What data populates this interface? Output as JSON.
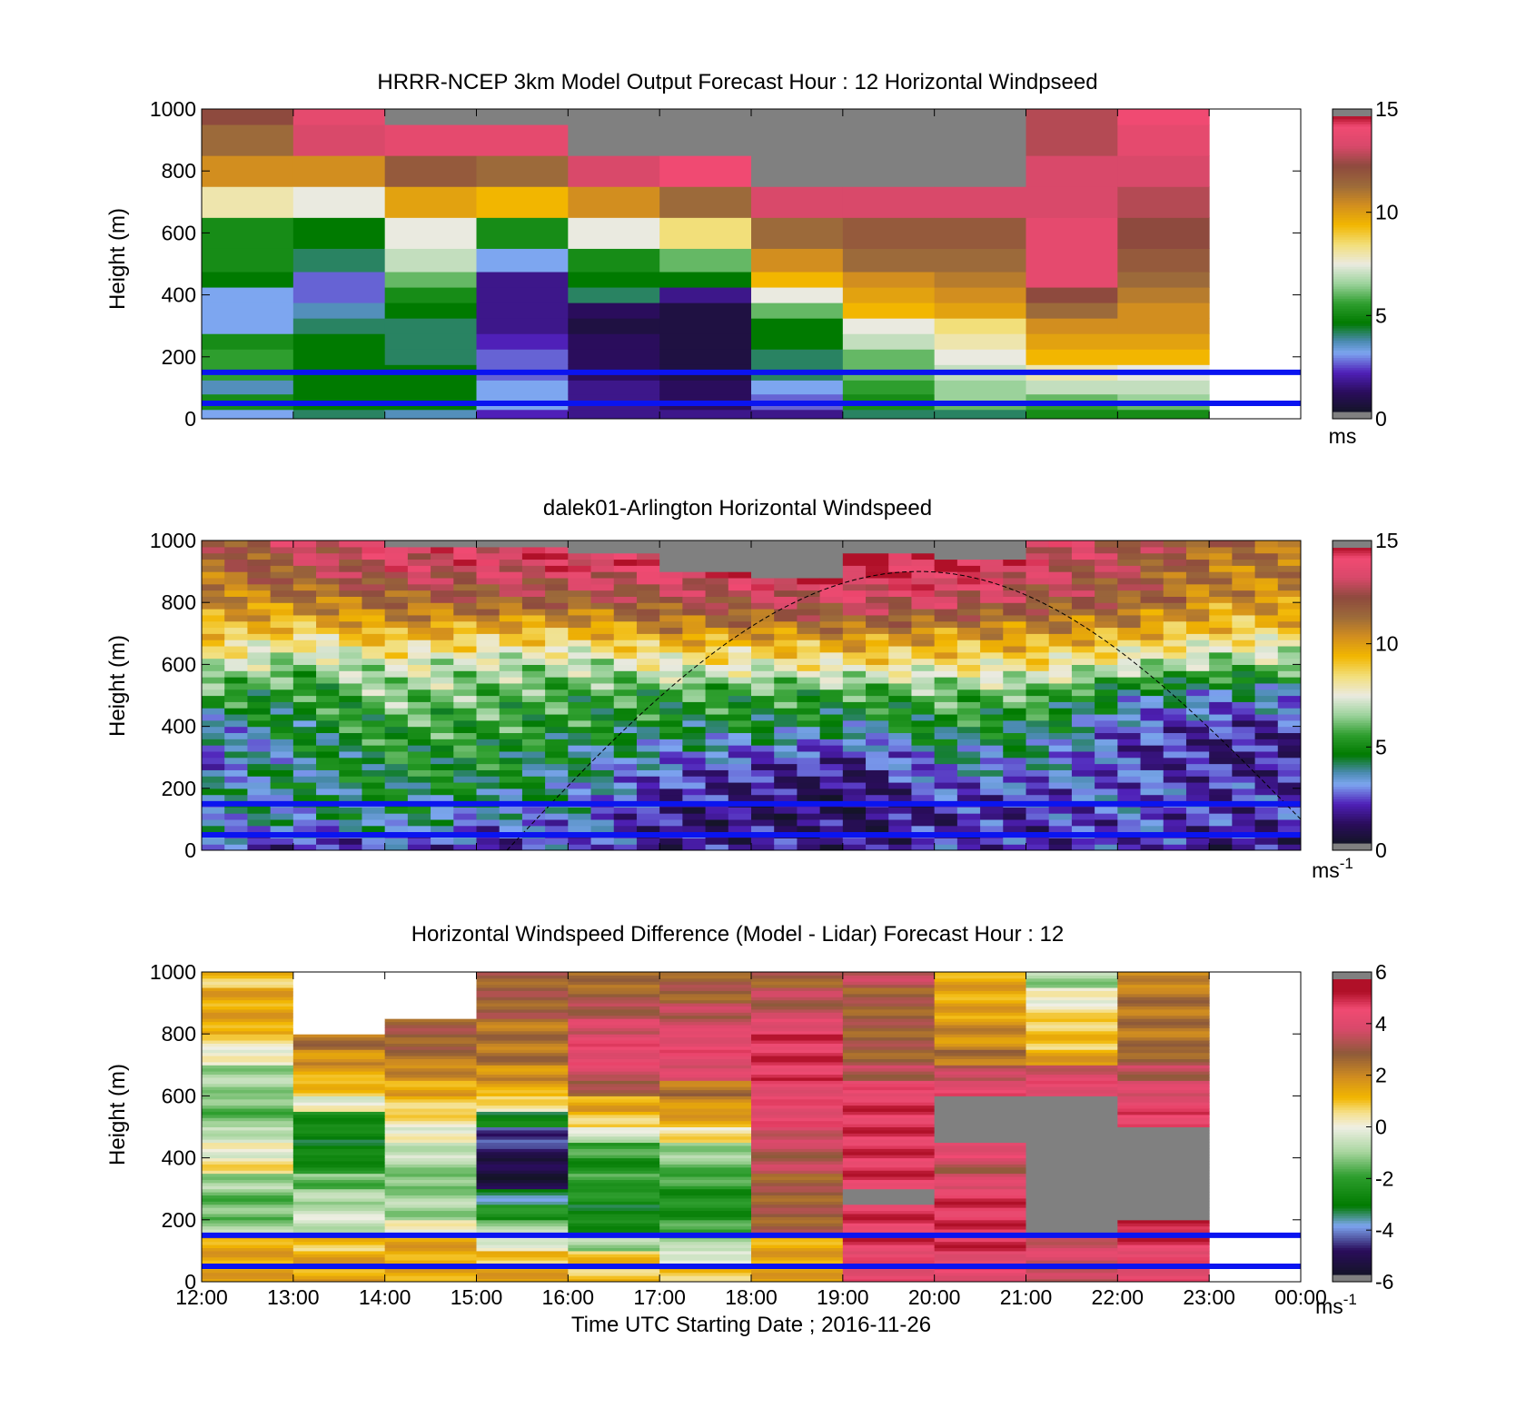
{
  "figure": {
    "x_tick_labels": [
      "12:00",
      "13:00",
      "14:00",
      "15:00",
      "16:00",
      "17:00",
      "18:00",
      "19:00",
      "20:00",
      "21:00",
      "22:00",
      "23:00",
      "00:00"
    ],
    "xlabel": "Time UTC  Starting Date ; 2016-11-26"
  },
  "chart_data": [
    {
      "type": "heatmap",
      "title": "HRRR-NCEP 3km Model Output   Forecast Hour : 12 Horizontal Windpseed",
      "ylabel": "Height (m)",
      "ylim": [
        0,
        1000
      ],
      "y_ticks": [
        0,
        200,
        400,
        600,
        800,
        1000
      ],
      "colorbar": {
        "range": [
          0,
          15
        ],
        "ticks": [
          0,
          5,
          10,
          15
        ],
        "unit": "ms"
      },
      "reference_lines_m": [
        50,
        150
      ],
      "x_hours": [
        "12:00",
        "13:00",
        "14:00",
        "15:00",
        "16:00",
        "17:00",
        "18:00",
        "19:00",
        "20:00",
        "21:00",
        "22:00"
      ],
      "height_levels_m": [
        20,
        40,
        60,
        100,
        150,
        200,
        250,
        300,
        350,
        400,
        450,
        500,
        600,
        700,
        800,
        900,
        1000
      ],
      "values": [
        [
          3.0,
          5.0,
          5.0,
          3.5,
          5.5,
          5.5,
          5.0,
          3.0,
          3.0,
          3.0,
          4.5,
          5.0,
          5.0,
          8.0,
          10.5,
          11.5,
          12.5
        ],
        [
          4.0,
          4.5,
          4.5,
          4.5,
          4.5,
          4.5,
          4.5,
          4.0,
          3.5,
          2.5,
          2.5,
          4.0,
          4.5,
          7.5,
          10.5,
          13.5,
          14.0
        ],
        [
          3.5,
          4.5,
          4.5,
          4.5,
          4.5,
          4.0,
          4.0,
          4.0,
          4.5,
          5.0,
          6.0,
          7.0,
          7.5,
          10.0,
          12.0,
          14.0,
          15.5
        ],
        [
          2.0,
          3.0,
          3.0,
          3.0,
          2.5,
          2.5,
          2.0,
          1.5,
          1.5,
          1.5,
          1.5,
          3.0,
          5.0,
          9.5,
          11.5,
          14.0,
          15.5
        ],
        [
          1.5,
          1.5,
          1.5,
          1.5,
          1.0,
          1.0,
          1.0,
          0.5,
          1.0,
          4.0,
          4.5,
          5.0,
          7.5,
          10.5,
          13.5,
          15.5,
          15.5
        ],
        [
          1.5,
          1.0,
          1.0,
          1.0,
          0.5,
          0.5,
          0.5,
          0.5,
          0.5,
          1.5,
          4.5,
          6.0,
          8.5,
          11.5,
          14.5,
          15.5,
          15.5
        ],
        [
          1.5,
          2.5,
          2.5,
          3.0,
          4.0,
          4.0,
          4.5,
          4.5,
          6.0,
          7.5,
          9.5,
          10.5,
          11.5,
          13.5,
          15.5,
          15.5,
          15.5
        ],
        [
          4.0,
          5.0,
          5.0,
          5.5,
          6.0,
          6.0,
          7.0,
          7.5,
          9.5,
          10.0,
          10.5,
          11.5,
          12.0,
          13.5,
          15.5,
          15.5,
          15.5
        ],
        [
          4.0,
          6.0,
          6.5,
          6.5,
          7.0,
          7.5,
          8.0,
          8.5,
          10.0,
          10.5,
          11.0,
          11.5,
          12.0,
          13.5,
          15.5,
          15.5,
          15.5
        ],
        [
          5.0,
          5.5,
          6.0,
          7.0,
          8.0,
          9.5,
          10.0,
          10.5,
          11.5,
          12.5,
          14.0,
          14.0,
          14.0,
          13.5,
          13.5,
          13.0,
          13.0
        ],
        [
          5.0,
          6.0,
          6.5,
          7.0,
          7.5,
          9.5,
          10.0,
          10.5,
          10.5,
          11.0,
          11.5,
          12.0,
          12.5,
          13.0,
          13.5,
          14.0,
          14.5
        ]
      ]
    },
    {
      "type": "heatmap",
      "title": "dalek01-Arlington  Horizontal Windspeed",
      "ylabel": "Height (m)",
      "ylim": [
        0,
        1000
      ],
      "y_ticks": [
        0,
        200,
        400,
        600,
        800,
        1000
      ],
      "colorbar": {
        "range": [
          0,
          15
        ],
        "ticks": [
          0,
          5,
          10,
          15
        ],
        "unit": "ms-1"
      },
      "reference_lines_m": [
        50,
        150
      ],
      "time_range_utc": [
        "12:00",
        "23:55"
      ],
      "time_step_min": 15,
      "height_step_m": 10,
      "gray_fill_above_m_by_hour": [
        [
          "12:00",
          1000
        ],
        [
          "14:00",
          980
        ],
        [
          "16:00",
          950
        ],
        [
          "17:00",
          900
        ],
        [
          "18:00",
          870
        ],
        [
          "19:00",
          960
        ],
        [
          "20:00",
          930
        ],
        [
          "21:00",
          1000
        ],
        [
          "22:00",
          1000
        ],
        [
          "23:00",
          1000
        ]
      ],
      "profile_by_hour": [
        {
          "time": "12:00",
          "v10m": 2.5,
          "v100m": 3.5,
          "v200m": 3.5,
          "v300m": 2.5,
          "v400m": 3.5,
          "v500m": 5.5,
          "v600m": 7.5,
          "v700m": 9.5,
          "v800m": 10.5,
          "v900m": 11.5,
          "v1000m": 12.0
        },
        {
          "time": "13:00",
          "v10m": 2.0,
          "v100m": 3.5,
          "v200m": 4.0,
          "v300m": 4.0,
          "v400m": 4.5,
          "v500m": 5.0,
          "v600m": 6.5,
          "v700m": 9.0,
          "v800m": 11.0,
          "v900m": 12.5,
          "v1000m": 13.5
        },
        {
          "time": "14:00",
          "v10m": 2.5,
          "v100m": 4.0,
          "v200m": 4.5,
          "v300m": 5.0,
          "v400m": 5.5,
          "v500m": 6.5,
          "v600m": 7.5,
          "v700m": 10.0,
          "v800m": 11.5,
          "v900m": 13.5,
          "v1000m": 14.0
        },
        {
          "time": "15:00",
          "v10m": 2.0,
          "v100m": 3.0,
          "v200m": 4.5,
          "v300m": 5.0,
          "v400m": 5.5,
          "v500m": 6.0,
          "v600m": 7.0,
          "v700m": 9.5,
          "v800m": 12.0,
          "v900m": 13.5,
          "v1000m": 14.5
        },
        {
          "time": "16:00",
          "v10m": 2.5,
          "v100m": 3.0,
          "v200m": 3.5,
          "v300m": 4.0,
          "v400m": 5.0,
          "v500m": 5.5,
          "v600m": 7.0,
          "v700m": 9.5,
          "v800m": 12.0,
          "v900m": 14.0,
          "v1000m": 14.5
        },
        {
          "time": "17:00",
          "v10m": 1.5,
          "v100m": 1.5,
          "v200m": 2.0,
          "v300m": 3.0,
          "v400m": 4.5,
          "v500m": 5.5,
          "v600m": 8.0,
          "v700m": 10.5,
          "v800m": 12.5,
          "v900m": 14.0,
          "v1000m": 14.5
        },
        {
          "time": "18:00",
          "v10m": 1.5,
          "v100m": 1.0,
          "v200m": 1.5,
          "v300m": 2.5,
          "v400m": 4.5,
          "v500m": 5.5,
          "v600m": 8.0,
          "v700m": 10.5,
          "v800m": 13.0,
          "v900m": 14.5,
          "v1000m": 15.0
        },
        {
          "time": "19:00",
          "v10m": 1.5,
          "v100m": 1.0,
          "v200m": 1.0,
          "v300m": 2.0,
          "v400m": 4.0,
          "v500m": 5.5,
          "v600m": 8.5,
          "v700m": 11.0,
          "v800m": 13.5,
          "v900m": 14.5,
          "v1000m": 15.0
        },
        {
          "time": "20:00",
          "v10m": 2.0,
          "v100m": 1.5,
          "v200m": 2.5,
          "v300m": 3.5,
          "v400m": 5.0,
          "v500m": 6.0,
          "v600m": 8.5,
          "v700m": 10.5,
          "v800m": 13.5,
          "v900m": 15.0,
          "v1000m": 15.0
        },
        {
          "time": "21:00",
          "v10m": 2.0,
          "v100m": 2.0,
          "v200m": 2.5,
          "v300m": 3.5,
          "v400m": 4.5,
          "v500m": 6.0,
          "v600m": 8.5,
          "v700m": 10.5,
          "v800m": 12.5,
          "v900m": 13.5,
          "v1000m": 14.0
        },
        {
          "time": "22:00",
          "v10m": 2.0,
          "v100m": 2.5,
          "v200m": 2.5,
          "v300m": 2.0,
          "v400m": 2.5,
          "v500m": 4.0,
          "v600m": 7.5,
          "v700m": 10.0,
          "v800m": 12.0,
          "v900m": 12.5,
          "v1000m": 13.0
        },
        {
          "time": "23:00",
          "v10m": 1.5,
          "v100m": 2.0,
          "v200m": 2.0,
          "v300m": 1.5,
          "v400m": 2.0,
          "v500m": 3.5,
          "v600m": 6.5,
          "v700m": 9.0,
          "v800m": 10.5,
          "v900m": 11.0,
          "v1000m": 11.5
        }
      ],
      "dashed_curve": {
        "peak_time": "19:50",
        "peak_height_m": 900,
        "start_time": "15:20",
        "end_time": "00:00",
        "end_height_m": 100
      }
    },
    {
      "type": "heatmap",
      "title": "Horizontal Windspeed Difference (Model - Lidar) Forecast Hour : 12",
      "ylabel": "Height (m)",
      "ylim": [
        0,
        1000
      ],
      "y_ticks": [
        0,
        200,
        400,
        600,
        800,
        1000
      ],
      "colorbar": {
        "range": [
          -6,
          6
        ],
        "ticks": [
          -6,
          -4,
          -2,
          0,
          2,
          4,
          6
        ],
        "unit": "ms-1"
      },
      "reference_lines_m": [
        50,
        150
      ],
      "x_hours": [
        "12:00",
        "13:00",
        "14:00",
        "15:00",
        "16:00",
        "17:00",
        "18:00",
        "19:00",
        "20:00",
        "21:00",
        "22:00"
      ],
      "height_levels_m": [
        25,
        75,
        125,
        175,
        225,
        275,
        325,
        375,
        425,
        475,
        525,
        575,
        625,
        675,
        725,
        775,
        825,
        875,
        925,
        975
      ],
      "values": [
        [
          1.5,
          1.5,
          1.5,
          -1.0,
          -1.5,
          -1.5,
          -1.0,
          0.5,
          0.0,
          -0.5,
          -1.5,
          -1.5,
          -1.0,
          -1.0,
          0.0,
          0.5,
          1.5,
          1.5,
          1.5,
          1.0
        ],
        [
          1.5,
          1.5,
          1.0,
          -0.5,
          -0.5,
          -1.0,
          -1.5,
          -2.5,
          -3.0,
          -3.0,
          -2.5,
          0.0,
          1.0,
          1.5,
          2.0,
          2.5,
          null,
          null,
          null,
          null
        ],
        [
          1.5,
          1.5,
          1.5,
          0.0,
          -1.0,
          -1.0,
          -1.5,
          -1.0,
          -0.5,
          0.0,
          0.5,
          1.0,
          1.5,
          2.0,
          2.5,
          3.0,
          3.0,
          null,
          null,
          null
        ],
        [
          1.5,
          1.0,
          0.0,
          -1.0,
          -2.5,
          -3.5,
          -5.5,
          -5.5,
          -5.0,
          -4.5,
          -3.0,
          0.5,
          1.5,
          2.0,
          2.5,
          2.5,
          2.5,
          3.0,
          3.0,
          3.0
        ],
        [
          1.0,
          1.0,
          -1.0,
          -2.5,
          -3.0,
          -2.5,
          -2.0,
          -2.5,
          -2.0,
          -0.5,
          1.0,
          1.5,
          3.0,
          4.0,
          4.5,
          4.5,
          4.0,
          3.5,
          3.0,
          2.5
        ],
        [
          1.0,
          0.0,
          -1.0,
          -2.0,
          -2.5,
          -2.5,
          -2.0,
          -1.5,
          -1.0,
          0.5,
          1.5,
          2.0,
          2.5,
          4.0,
          4.5,
          4.5,
          4.0,
          3.5,
          3.0,
          3.0
        ],
        [
          1.5,
          1.5,
          1.5,
          3.0,
          3.0,
          3.0,
          3.0,
          3.5,
          3.5,
          4.0,
          4.5,
          4.5,
          4.5,
          5.0,
          5.0,
          5.0,
          4.5,
          3.5,
          3.5,
          3.0
        ],
        [
          4.5,
          4.5,
          5.0,
          5.0,
          5.0,
          null,
          5.0,
          5.0,
          5.0,
          5.0,
          5.0,
          5.0,
          4.5,
          3.5,
          3.0,
          3.0,
          3.0,
          3.0,
          3.0,
          3.5
        ],
        [
          4.5,
          4.5,
          5.0,
          5.0,
          5.0,
          5.0,
          4.0,
          3.5,
          4.5,
          null,
          null,
          null,
          4.5,
          3.5,
          2.5,
          2.0,
          2.0,
          1.5,
          1.5,
          1.5
        ],
        [
          3.5,
          4.0,
          4.0,
          null,
          null,
          null,
          null,
          null,
          null,
          null,
          null,
          null,
          4.5,
          4.0,
          1.5,
          1.0,
          1.0,
          0.5,
          0.0,
          -1.0
        ],
        [
          4.5,
          4.5,
          5.0,
          5.5,
          null,
          null,
          null,
          null,
          null,
          null,
          5.0,
          4.5,
          4.0,
          3.5,
          3.0,
          2.5,
          2.5,
          2.5,
          2.5,
          2.0
        ]
      ]
    }
  ]
}
